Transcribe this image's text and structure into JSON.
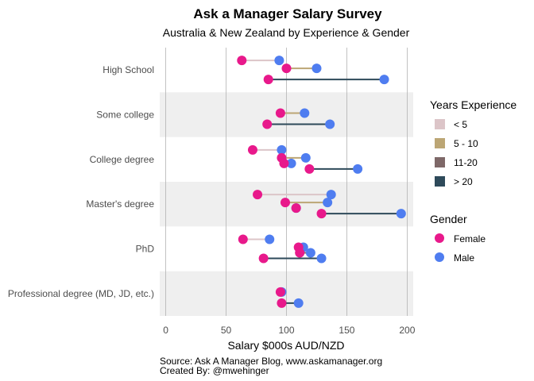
{
  "chart_data": {
    "type": "dumbbell",
    "title": "Ask a Manager Salary Survey",
    "subtitle": "Australia & New Zealand by Experience & Gender",
    "xlabel": "Salary $000s AUD/NZD",
    "ylabel": "",
    "xlim": [
      -5,
      205
    ],
    "xticks": [
      0,
      50,
      100,
      150,
      200
    ],
    "caption": [
      "Source: Ask A Manager Blog, www.askamanager.org",
      "Created By: @mwehinger"
    ],
    "grid": true,
    "legend_position": "right",
    "experience_legend": {
      "title": "Years Experience",
      "items": [
        {
          "label": "< 5",
          "color": "#dcc5c8"
        },
        {
          "label": "5 - 10",
          "color": "#bca675"
        },
        {
          "label": "11-20",
          "color": "#7e6868"
        },
        {
          "label": "> 20",
          "color": "#2e4a5a"
        }
      ]
    },
    "gender_legend": {
      "title": "Gender",
      "items": [
        {
          "label": "Female",
          "color": "#e8198b"
        },
        {
          "label": "Male",
          "color": "#4f7df0"
        }
      ]
    },
    "categories": [
      "High School",
      "Some college",
      "College degree",
      "Master's degree",
      "PhD",
      "Professional degree (MD, JD, etc.)"
    ],
    "rows": [
      {
        "category": "High School",
        "pairs": [
          {
            "exp": "< 5",
            "female": 63,
            "male": 94
          },
          {
            "exp": "5 - 10",
            "female": 100,
            "male": 125
          },
          {
            "exp": "> 20",
            "female": 85,
            "male": 181
          }
        ]
      },
      {
        "category": "Some college",
        "pairs": [
          {
            "exp": "5 - 10",
            "female": 95,
            "male": 115
          },
          {
            "exp": "> 20",
            "female": 84,
            "male": 136
          }
        ]
      },
      {
        "category": "College degree",
        "pairs": [
          {
            "exp": "< 5",
            "female": 72,
            "male": 96
          },
          {
            "exp": "5 - 10",
            "female": 96,
            "male": 116
          },
          {
            "exp": "11-20",
            "female": 98,
            "male": 104
          },
          {
            "exp": "> 20",
            "female": 119,
            "male": 159
          }
        ]
      },
      {
        "category": "Master's degree",
        "pairs": [
          {
            "exp": "< 5",
            "female": 76,
            "male": 137
          },
          {
            "exp": "5 - 10",
            "female": 99,
            "male": 134
          },
          {
            "exp": "11-20",
            "female": 108,
            "male": 108
          },
          {
            "exp": "> 20",
            "female": 129,
            "male": 195
          }
        ]
      },
      {
        "category": "PhD",
        "pairs": [
          {
            "exp": "< 5",
            "female": 64,
            "male": 86
          },
          {
            "exp": "5 - 10",
            "female": 110,
            "male": 114
          },
          {
            "exp": "11-20",
            "female": 111,
            "male": 120
          },
          {
            "exp": "> 20",
            "female": 81,
            "male": 129
          }
        ]
      },
      {
        "category": "Professional degree (MD, JD, etc.)",
        "pairs": [
          {
            "exp": "5 - 10",
            "female": 95,
            "male": 96
          },
          {
            "exp": "> 20",
            "female": 96,
            "male": 110
          }
        ]
      }
    ]
  }
}
